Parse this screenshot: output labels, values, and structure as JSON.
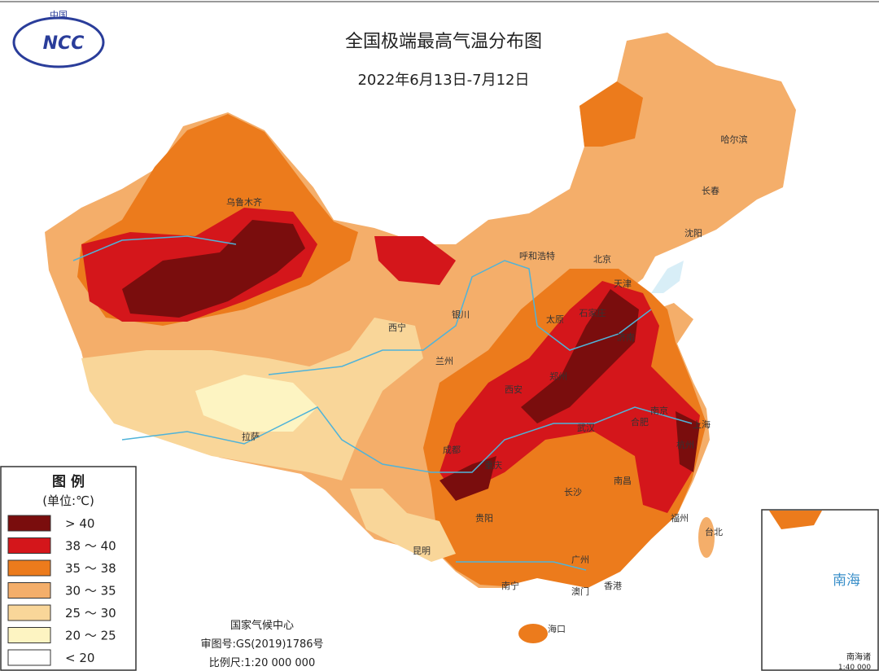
{
  "header": {
    "title": "全国极端最高气温分布图",
    "subtitle": "2022年6月13日-7月12日"
  },
  "logo": {
    "top": "中国",
    "text": "NCC"
  },
  "legend": {
    "title": "图 例",
    "unit": "(单位:℃)",
    "items": [
      {
        "label": "> 40",
        "color": "#7a0d0d"
      },
      {
        "label": "38 ～ 40",
        "color": "#d4161b"
      },
      {
        "label": "35 ～ 38",
        "color": "#ec7b1c"
      },
      {
        "label": "30 ～ 35",
        "color": "#f4ae6a"
      },
      {
        "label": "25 ～ 30",
        "color": "#f9d699"
      },
      {
        "label": "20 ～ 25",
        "color": "#fdf4c2"
      },
      {
        "label": "< 20",
        "color": "#ffffff"
      }
    ]
  },
  "credits": [
    "国家气候中心",
    "审图号:GS(2019)1786号",
    "比例尺:1:20 000 000"
  ],
  "cities": [
    "乌鲁木齐",
    "哈尔滨",
    "长春",
    "沈阳",
    "呼和浩特",
    "北京",
    "天津",
    "石家庄",
    "太原",
    "银川",
    "西宁",
    "兰州",
    "济南",
    "郑州",
    "西安",
    "南京",
    "合肥",
    "上海",
    "杭州",
    "武汉",
    "成都",
    "重庆",
    "拉萨",
    "长沙",
    "南昌",
    "贵阳",
    "福州",
    "台北",
    "昆明",
    "广州",
    "南宁",
    "澳门",
    "香港",
    "海口"
  ],
  "inset": {
    "label": "南海",
    "scale": "1:40 000",
    "caption": "南海诸"
  }
}
